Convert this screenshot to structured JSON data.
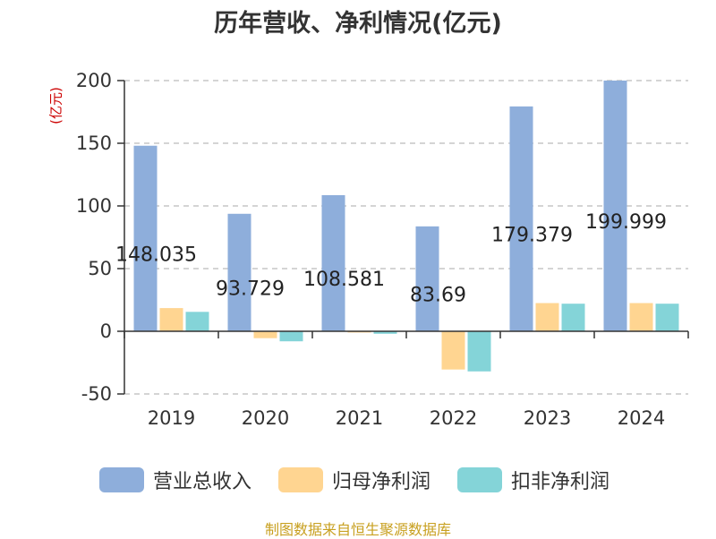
{
  "title": "历年营收、净利情况(亿元)",
  "unit_label": "(亿元)",
  "source": "制图数据来自恒生聚源数据库",
  "colors": {
    "revenue": "#8EAEDB",
    "net_profit": "#FFD591",
    "deducted_profit": "#84D4D8",
    "grid": "#bbbbbb",
    "axis": "#333333",
    "tick_text": "#333333"
  },
  "chart_data": {
    "type": "bar",
    "categories": [
      "2019",
      "2020",
      "2021",
      "2022",
      "2023",
      "2024"
    ],
    "series": [
      {
        "name": "营业总收入",
        "values": [
          148.035,
          93.729,
          108.581,
          83.69,
          179.379,
          199.999
        ]
      },
      {
        "name": "归母净利润",
        "values": [
          18.5,
          -5.5,
          -1.0,
          -30.5,
          22.5,
          22.5
        ]
      },
      {
        "name": "扣非净利润",
        "values": [
          15.5,
          -8.0,
          -2.0,
          -32.0,
          22.0,
          22.0
        ]
      }
    ],
    "data_labels": [
      "148.035",
      "93.729",
      "108.581",
      "83.69",
      "179.379",
      "199.999"
    ],
    "yticks": [
      -50,
      0,
      50,
      100,
      150,
      200
    ],
    "ylim": [
      -50,
      200
    ],
    "grid": true,
    "legend_position": "bottom"
  }
}
